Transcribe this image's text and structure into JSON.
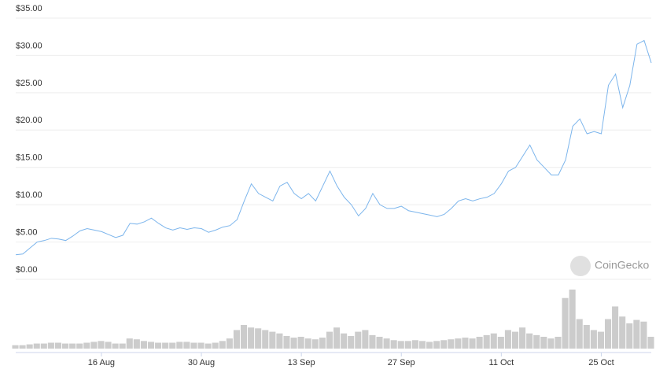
{
  "chart_data": {
    "type": "line",
    "watermark": "CoinGecko",
    "categories": [
      "4 Aug",
      "5 Aug",
      "6 Aug",
      "7 Aug",
      "8 Aug",
      "9 Aug",
      "10 Aug",
      "11 Aug",
      "12 Aug",
      "13 Aug",
      "14 Aug",
      "15 Aug",
      "16 Aug",
      "17 Aug",
      "18 Aug",
      "19 Aug",
      "20 Aug",
      "21 Aug",
      "22 Aug",
      "23 Aug",
      "24 Aug",
      "25 Aug",
      "26 Aug",
      "27 Aug",
      "28 Aug",
      "29 Aug",
      "30 Aug",
      "31 Aug",
      "1 Sep",
      "2 Sep",
      "3 Sep",
      "4 Sep",
      "5 Sep",
      "6 Sep",
      "7 Sep",
      "8 Sep",
      "9 Sep",
      "10 Sep",
      "11 Sep",
      "12 Sep",
      "13 Sep",
      "14 Sep",
      "15 Sep",
      "16 Sep",
      "17 Sep",
      "18 Sep",
      "19 Sep",
      "20 Sep",
      "21 Sep",
      "22 Sep",
      "23 Sep",
      "24 Sep",
      "25 Sep",
      "26 Sep",
      "27 Sep",
      "28 Sep",
      "29 Sep",
      "30 Sep",
      "1 Oct",
      "2 Oct",
      "3 Oct",
      "4 Oct",
      "5 Oct",
      "6 Oct",
      "7 Oct",
      "8 Oct",
      "9 Oct",
      "10 Oct",
      "11 Oct",
      "12 Oct",
      "13 Oct",
      "14 Oct",
      "15 Oct",
      "16 Oct",
      "17 Oct",
      "18 Oct",
      "19 Oct",
      "20 Oct",
      "21 Oct",
      "22 Oct",
      "23 Oct",
      "24 Oct",
      "25 Oct",
      "26 Oct",
      "27 Oct",
      "28 Oct",
      "29 Oct",
      "30 Oct",
      "31 Oct",
      "1 Nov"
    ],
    "series": [
      {
        "name": "Price",
        "color": "#7cb5ec",
        "values": [
          3.3,
          3.4,
          4.2,
          5.0,
          5.2,
          5.5,
          5.4,
          5.2,
          5.8,
          6.5,
          6.8,
          6.6,
          6.4,
          6.0,
          5.6,
          5.9,
          7.5,
          7.4,
          7.7,
          8.2,
          7.5,
          6.9,
          6.6,
          6.9,
          6.7,
          6.9,
          6.8,
          6.3,
          6.6,
          7.0,
          7.2,
          8.0,
          10.5,
          12.8,
          11.5,
          11.0,
          10.5,
          12.5,
          13.0,
          11.5,
          10.8,
          11.5,
          10.5,
          12.5,
          14.5,
          12.5,
          11.0,
          10.0,
          8.5,
          9.5,
          11.5,
          10.0,
          9.5,
          9.5,
          9.8,
          9.2,
          9.0,
          8.8,
          8.6,
          8.4,
          8.7,
          9.5,
          10.5,
          10.8,
          10.5,
          10.8,
          11.0,
          11.5,
          12.8,
          14.5,
          15.0,
          16.5,
          18.0,
          16.0,
          15.0,
          14.0,
          14.0,
          16.0,
          20.5,
          21.5,
          19.5,
          19.8,
          19.5,
          26.0,
          27.5,
          23.0,
          26.0,
          31.5,
          32.0,
          29.0
        ]
      },
      {
        "name": "Volume",
        "color": "#cccccc",
        "values": [
          4,
          4,
          5,
          6,
          6,
          7,
          7,
          6,
          6,
          6,
          7,
          8,
          9,
          8,
          6,
          6,
          12,
          11,
          9,
          8,
          7,
          7,
          7,
          8,
          8,
          7,
          7,
          6,
          7,
          9,
          12,
          22,
          28,
          25,
          24,
          22,
          20,
          18,
          15,
          13,
          14,
          12,
          11,
          13,
          20,
          25,
          18,
          15,
          20,
          22,
          16,
          14,
          12,
          10,
          9,
          9,
          10,
          9,
          8,
          9,
          10,
          11,
          12,
          13,
          12,
          14,
          16,
          18,
          14,
          22,
          20,
          25,
          18,
          16,
          14,
          12,
          14,
          60,
          70,
          35,
          28,
          22,
          20,
          35,
          50,
          38,
          30,
          34,
          32,
          14
        ]
      }
    ],
    "ylim": [
      0,
      35
    ],
    "yticks": [
      {
        "value": 0,
        "label": "$0.00"
      },
      {
        "value": 5,
        "label": "$5.00"
      },
      {
        "value": 10,
        "label": "$10.00"
      },
      {
        "value": 15,
        "label": "$15.00"
      },
      {
        "value": 20,
        "label": "$20.00"
      },
      {
        "value": 25,
        "label": "$25.00"
      },
      {
        "value": 30,
        "label": "$30.00"
      },
      {
        "value": 35,
        "label": "$35.00"
      }
    ],
    "xticks": [
      "16 Aug",
      "30 Aug",
      "13 Sep",
      "27 Sep",
      "11 Oct",
      "25 Oct"
    ],
    "grid": true
  }
}
